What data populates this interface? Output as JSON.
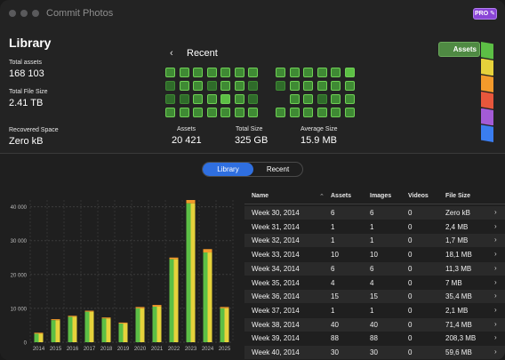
{
  "window": {
    "title": "Commit Photos",
    "pro_badge": "PRO ✎"
  },
  "library": {
    "title": "Library",
    "stats": [
      {
        "label": "Total assets",
        "value": "168 103"
      },
      {
        "label": "Total File Size",
        "value": "2.41 TB"
      },
      {
        "label": "Recovered Space",
        "value": "Zero kB"
      }
    ]
  },
  "recent": {
    "title": "Recent",
    "back_icon": "chevron-left-icon",
    "stats": [
      {
        "label": "Assets",
        "value": "20 421"
      },
      {
        "label": "Total Size",
        "value": "325 GB"
      },
      {
        "label": "Average Size",
        "value": "15.9 MB"
      }
    ],
    "grid_colors": {
      "dark": "#2f6b2a",
      "mid": "#3f8a34",
      "bright": "#5cbf45"
    }
  },
  "side_tabs": {
    "active": "Assets",
    "strip_colors": [
      "#5cbf45",
      "#e6d23b",
      "#f39a2b",
      "#e8573c",
      "#a35bd6",
      "#3a7df0"
    ]
  },
  "segmented": {
    "options": [
      "Library",
      "Recent"
    ],
    "selected": "Library"
  },
  "chart_data": {
    "type": "bar",
    "categories": [
      "2014",
      "2015",
      "2016",
      "2017",
      "2018",
      "2019",
      "2020",
      "2021",
      "2022",
      "2023",
      "2024",
      "2025"
    ],
    "series": [
      {
        "values": [
          2500,
          6500,
          7500,
          9000,
          7000,
          5500,
          10000,
          10500,
          24500,
          41000,
          26500,
          10000
        ]
      },
      {
        "values": [
          2800,
          6800,
          7800,
          9300,
          7300,
          5800,
          10400,
          11000,
          25000,
          42000,
          27500,
          10400
        ]
      }
    ],
    "yticks": [
      "0",
      "10 000",
      "20 000",
      "30 000",
      "40 000"
    ],
    "ylim": [
      0,
      42000
    ],
    "colors": {
      "a": "#5cbf45",
      "b": "#e6d23b",
      "c": "#f39a2b"
    }
  },
  "table": {
    "columns": [
      "Name",
      "Assets",
      "Images",
      "Videos",
      "File Size"
    ],
    "sort_icon": "chevron-up-icon",
    "rows": [
      [
        "Week 30, 2014",
        "6",
        "6",
        "0",
        "Zero kB"
      ],
      [
        "Week 31, 2014",
        "1",
        "1",
        "0",
        "2,4 MB"
      ],
      [
        "Week 32, 2014",
        "1",
        "1",
        "0",
        "1,7 MB"
      ],
      [
        "Week 33, 2014",
        "10",
        "10",
        "0",
        "18,1 MB"
      ],
      [
        "Week 34, 2014",
        "6",
        "6",
        "0",
        "11,3 MB"
      ],
      [
        "Week 35, 2014",
        "4",
        "4",
        "0",
        "7 MB"
      ],
      [
        "Week 36, 2014",
        "15",
        "15",
        "0",
        "35,4 MB"
      ],
      [
        "Week 37, 2014",
        "1",
        "1",
        "0",
        "2,1 MB"
      ],
      [
        "Week 38, 2014",
        "40",
        "40",
        "0",
        "71,4 MB"
      ],
      [
        "Week 39, 2014",
        "88",
        "88",
        "0",
        "208,3 MB"
      ],
      [
        "Week 40, 2014",
        "30",
        "30",
        "0",
        "59,6 MB"
      ],
      [
        "Week 41, 2014",
        "64",
        "64",
        "0",
        "80,9 MB"
      ]
    ]
  }
}
